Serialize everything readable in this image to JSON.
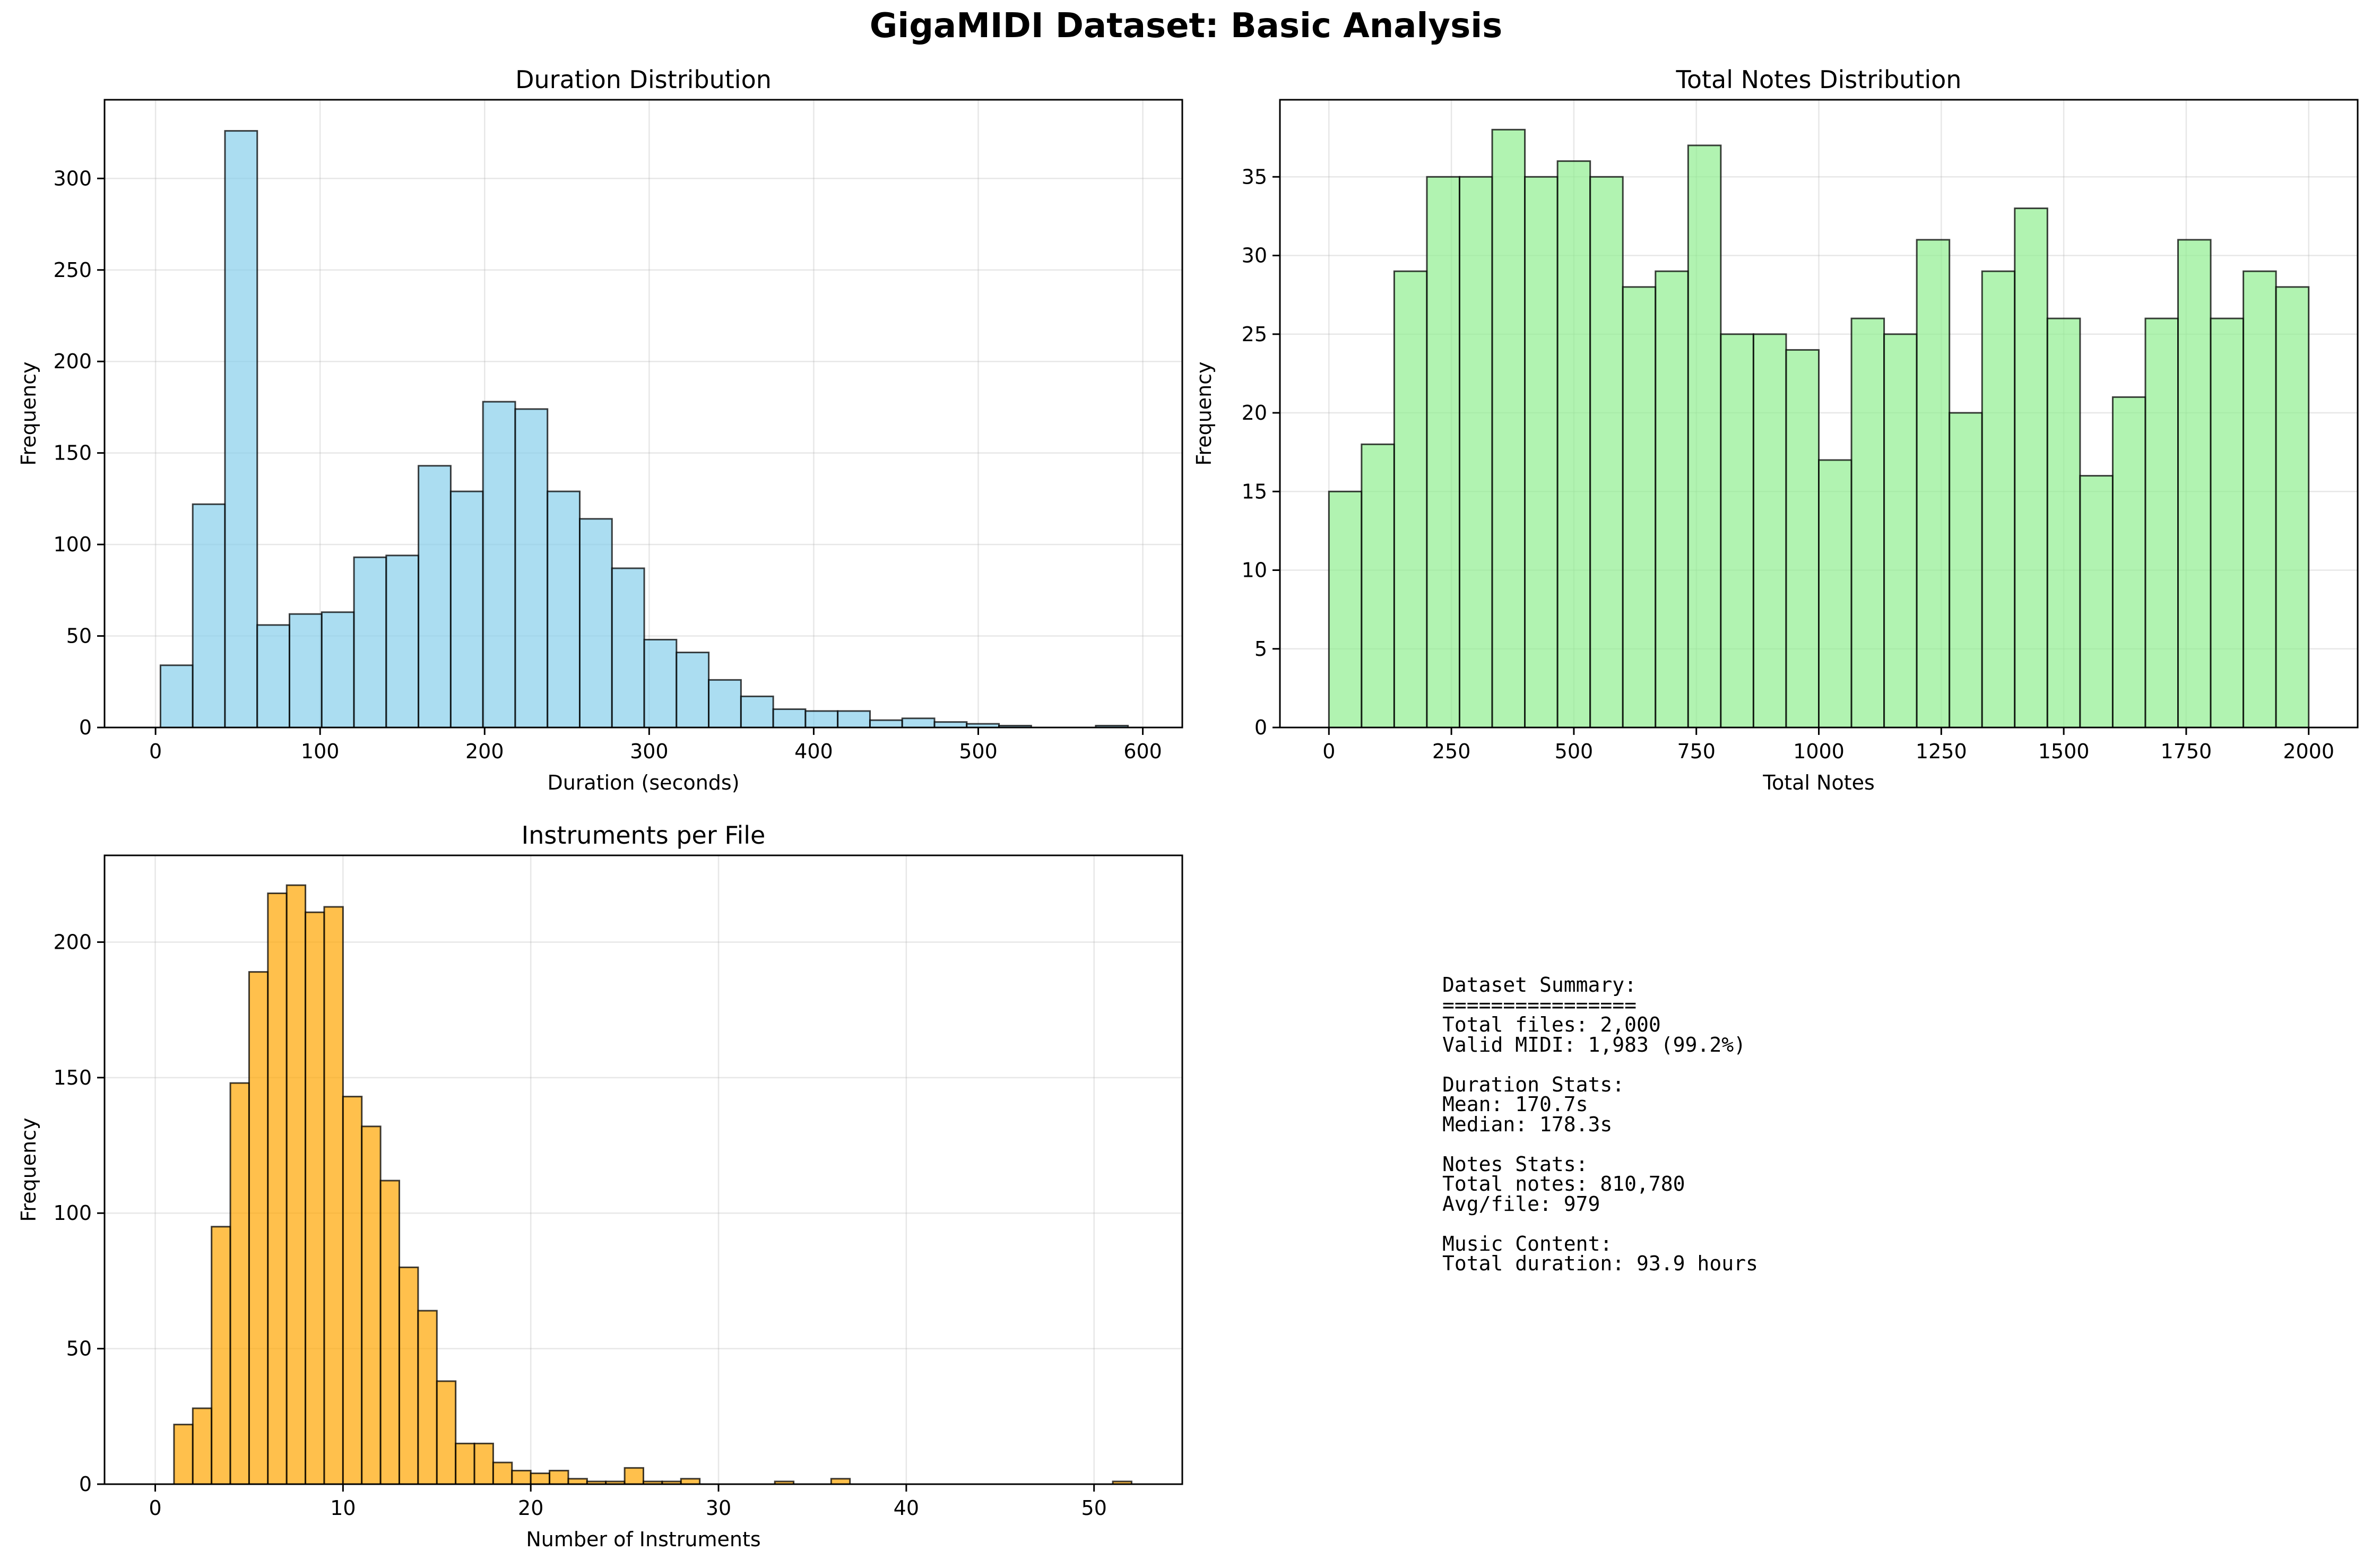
{
  "figure": {
    "suptitle": "GigaMIDI Dataset: Basic Analysis"
  },
  "chart_data": [
    {
      "type": "bar",
      "title": "Duration Distribution",
      "xlabel": "Duration (seconds)",
      "ylabel": "Frequency",
      "color": "#87CEEB",
      "xlim": [
        -31,
        624
      ],
      "ylim": [
        0,
        343
      ],
      "xticks": [
        0,
        100,
        200,
        300,
        400,
        500,
        600
      ],
      "yticks": [
        0,
        50,
        100,
        150,
        200,
        250,
        300
      ],
      "grid": true,
      "bin_edges": [
        3.0,
        22.6,
        42.2,
        61.8,
        81.4,
        101.0,
        120.6,
        140.2,
        159.8,
        179.4,
        199.0,
        218.6,
        238.2,
        257.8,
        277.4,
        297.0,
        316.6,
        336.2,
        355.8,
        375.4,
        395.0,
        414.6,
        434.2,
        453.8,
        473.4,
        493.0,
        512.6,
        532.2,
        551.8,
        571.4,
        591.0
      ],
      "values": [
        34,
        122,
        326,
        56,
        62,
        63,
        93,
        94,
        143,
        129,
        178,
        174,
        129,
        114,
        87,
        48,
        41,
        26,
        17,
        10,
        9,
        9,
        4,
        5,
        3,
        2,
        1,
        0,
        0,
        1
      ]
    },
    {
      "type": "bar",
      "title": "Total Notes Distribution",
      "xlabel": "Total Notes",
      "ylabel": "Frequency",
      "color": "#90EE90",
      "xlim": [
        -100,
        2100
      ],
      "ylim": [
        0,
        39.9
      ],
      "xticks": [
        0,
        250,
        500,
        750,
        1000,
        1250,
        1500,
        1750,
        2000
      ],
      "yticks": [
        0,
        5,
        10,
        15,
        20,
        25,
        30,
        35
      ],
      "grid": true,
      "bin_edges": [
        0,
        66.67,
        133.33,
        200,
        266.67,
        333.33,
        400,
        466.67,
        533.33,
        600,
        666.67,
        733.33,
        800,
        866.67,
        933.33,
        1000,
        1066.67,
        1133.33,
        1200,
        1266.67,
        1333.33,
        1400,
        1466.67,
        1533.33,
        1600,
        1666.67,
        1733.33,
        1800,
        1866.67,
        1933.33,
        2000
      ],
      "values": [
        15,
        18,
        29,
        35,
        35,
        38,
        35,
        36,
        35,
        28,
        29,
        37,
        25,
        25,
        24,
        17,
        26,
        25,
        31,
        20,
        29,
        33,
        26,
        16,
        21,
        26,
        31,
        26,
        29,
        28
      ]
    },
    {
      "type": "bar",
      "title": "Instruments per File",
      "xlabel": "Number of Instruments",
      "ylabel": "Frequency",
      "color": "#FFA500",
      "xlim": [
        -2.7,
        54.7
      ],
      "ylim": [
        0,
        232
      ],
      "xticks": [
        0,
        10,
        20,
        30,
        40,
        50
      ],
      "yticks": [
        0,
        50,
        100,
        150,
        200
      ],
      "grid": true,
      "bin_edges": [
        1,
        2,
        3,
        4,
        5,
        6,
        7,
        8,
        9,
        10,
        11,
        12,
        13,
        14,
        15,
        16,
        17,
        18,
        19,
        20,
        21,
        22,
        23,
        24,
        25,
        26,
        27,
        28,
        29,
        30,
        31,
        32,
        33,
        34,
        35,
        36,
        37,
        38,
        39,
        40,
        41,
        42,
        43,
        44,
        45,
        46,
        47,
        48,
        49,
        50,
        51,
        52
      ],
      "values": [
        22,
        28,
        95,
        148,
        189,
        218,
        221,
        211,
        213,
        143,
        132,
        112,
        80,
        64,
        38,
        15,
        15,
        8,
        5,
        4,
        5,
        2,
        1,
        1,
        6,
        1,
        1,
        2,
        0,
        0,
        0,
        0,
        1,
        0,
        0,
        2,
        0,
        0,
        0,
        0,
        0,
        0,
        0,
        0,
        0,
        0,
        0,
        0,
        0,
        0,
        1
      ]
    }
  ],
  "summary": {
    "lines": [
      "Dataset Summary:",
      "================",
      "Total files: 2,000",
      "Valid MIDI: 1,983 (99.2%)",
      "",
      "Duration Stats:",
      "Mean: 170.7s",
      "Median: 178.3s",
      "",
      "Notes Stats:",
      "Total notes: 810,780",
      "Avg/file: 979",
      "",
      "Music Content:",
      "Total duration: 93.9 hours"
    ]
  }
}
